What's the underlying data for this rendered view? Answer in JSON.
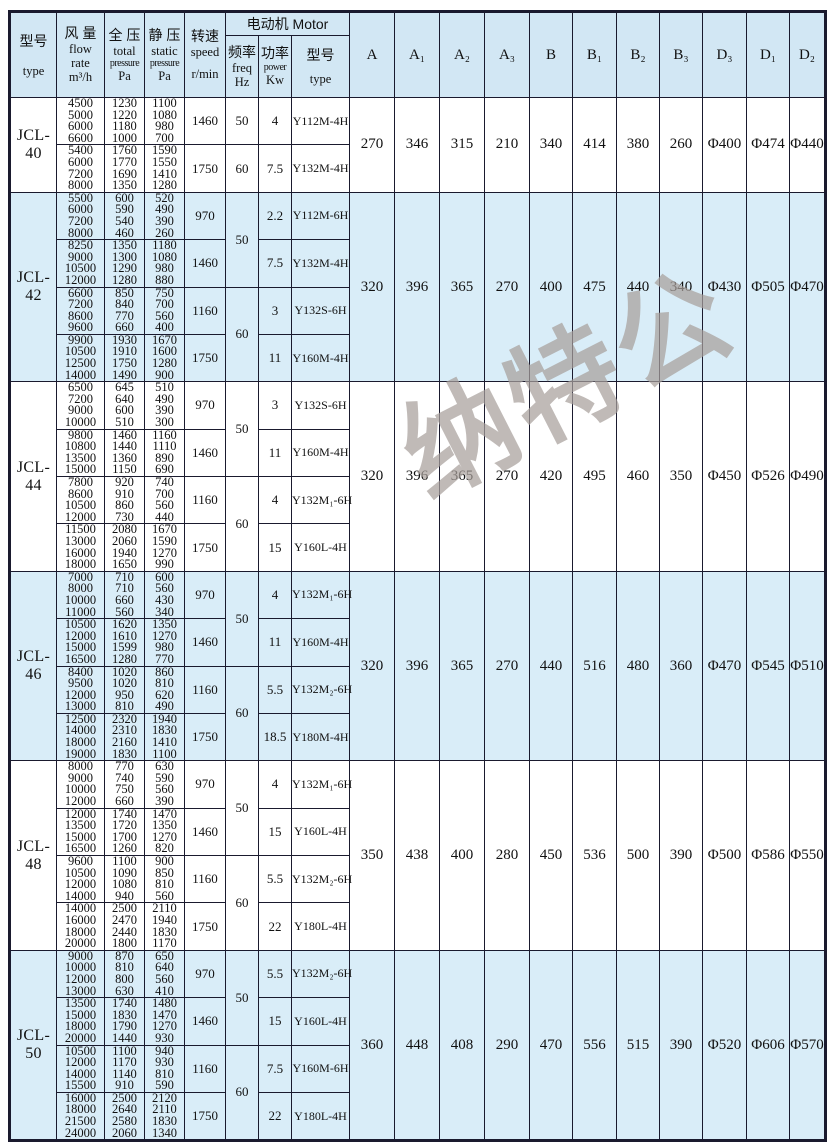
{
  "watermark": "纳特公",
  "header": {
    "type_zh": "型号",
    "type_en": "type",
    "flow_zh": "风 量",
    "flow_en1": "flow",
    "flow_en2": "rate",
    "flow_unit": "m³/h",
    "total_zh": "全 压",
    "total_en1": "total",
    "total_en2": "pressure",
    "total_unit": "Pa",
    "static_zh": "静 压",
    "static_en1": "static",
    "static_en2": "pressure",
    "static_unit": "Pa",
    "speed_zh": "转速",
    "speed_en": "speed",
    "speed_unit": "r/min",
    "motor_group": "电动机 Motor",
    "freq_zh": "频率",
    "freq_en": "freq",
    "freq_unit": "Hz",
    "power_zh": "功率",
    "power_en": "power",
    "power_unit": "Kw",
    "motor_type_zh": "型号",
    "motor_type_en": "type",
    "dims": [
      "A",
      "A₁",
      "A₂",
      "A₃",
      "B",
      "B₁",
      "B₂",
      "B₃",
      "D₃",
      "D₁",
      "D₂"
    ]
  },
  "sections": [
    {
      "model": "JCL-40",
      "shaded": false,
      "freq_groups": [
        {
          "freq": "50",
          "rows": [
            {
              "flow": [
                "4500",
                "5000",
                "6000",
                "6600"
              ],
              "total": [
                "1230",
                "1220",
                "1180",
                "1000"
              ],
              "static": [
                "1100",
                "1080",
                "980",
                "700"
              ],
              "speed": "1460",
              "power": "4",
              "motor": "Y112M-4H"
            }
          ]
        },
        {
          "freq": "60",
          "rows": [
            {
              "flow": [
                "5400",
                "6000",
                "7200",
                "8000"
              ],
              "total": [
                "1760",
                "1770",
                "1690",
                "1350"
              ],
              "static": [
                "1590",
                "1550",
                "1410",
                "1280"
              ],
              "speed": "1750",
              "power": "7.5",
              "motor": "Y132M-4H"
            }
          ]
        }
      ],
      "dims": [
        "270",
        "346",
        "315",
        "210",
        "340",
        "414",
        "380",
        "260",
        "Φ400",
        "Φ474",
        "Φ440"
      ]
    },
    {
      "model": "JCL-42",
      "shaded": true,
      "freq_groups": [
        {
          "freq": "50",
          "rows": [
            {
              "flow": [
                "5500",
                "6000",
                "7200",
                "8000"
              ],
              "total": [
                "600",
                "590",
                "540",
                "460"
              ],
              "static": [
                "520",
                "490",
                "390",
                "260"
              ],
              "speed": "970",
              "power": "2.2",
              "motor": "Y112M-6H"
            },
            {
              "flow": [
                "8250",
                "9000",
                "10500",
                "12000"
              ],
              "total": [
                "1350",
                "1300",
                "1290",
                "1280"
              ],
              "static": [
                "1180",
                "1080",
                "980",
                "880"
              ],
              "speed": "1460",
              "power": "7.5",
              "motor": "Y132M-4H"
            }
          ]
        },
        {
          "freq": "60",
          "rows": [
            {
              "flow": [
                "6600",
                "7200",
                "8600",
                "9600"
              ],
              "total": [
                "850",
                "840",
                "770",
                "660"
              ],
              "static": [
                "750",
                "700",
                "560",
                "400"
              ],
              "speed": "1160",
              "power": "3",
              "motor": "Y132S-6H"
            },
            {
              "flow": [
                "9900",
                "10500",
                "12500",
                "14000"
              ],
              "total": [
                "1930",
                "1910",
                "1750",
                "1490"
              ],
              "static": [
                "1670",
                "1600",
                "1280",
                "900"
              ],
              "speed": "1750",
              "power": "11",
              "motor": "Y160M-4H"
            }
          ]
        }
      ],
      "dims": [
        "320",
        "396",
        "365",
        "270",
        "400",
        "475",
        "440",
        "340",
        "Φ430",
        "Φ505",
        "Φ470"
      ]
    },
    {
      "model": "JCL-44",
      "shaded": false,
      "freq_groups": [
        {
          "freq": "50",
          "rows": [
            {
              "flow": [
                "6500",
                "7200",
                "9000",
                "10000"
              ],
              "total": [
                "645",
                "640",
                "600",
                "510"
              ],
              "static": [
                "510",
                "490",
                "390",
                "300"
              ],
              "speed": "970",
              "power": "3",
              "motor": "Y132S-6H"
            },
            {
              "flow": [
                "9800",
                "10800",
                "13500",
                "15000"
              ],
              "total": [
                "1460",
                "1440",
                "1360",
                "1150"
              ],
              "static": [
                "1160",
                "1110",
                "890",
                "690"
              ],
              "speed": "1460",
              "power": "11",
              "motor": "Y160M-4H"
            }
          ]
        },
        {
          "freq": "60",
          "rows": [
            {
              "flow": [
                "7800",
                "8600",
                "10500",
                "12000"
              ],
              "total": [
                "920",
                "910",
                "860",
                "730"
              ],
              "static": [
                "740",
                "700",
                "560",
                "440"
              ],
              "speed": "1160",
              "power": "4",
              "motor": "Y132M₁-6H"
            },
            {
              "flow": [
                "11500",
                "13000",
                "16000",
                "18000"
              ],
              "total": [
                "2080",
                "2060",
                "1940",
                "1650"
              ],
              "static": [
                "1670",
                "1590",
                "1270",
                "990"
              ],
              "speed": "1750",
              "power": "15",
              "motor": "Y160L-4H"
            }
          ]
        }
      ],
      "dims": [
        "320",
        "396",
        "365",
        "270",
        "420",
        "495",
        "460",
        "350",
        "Φ450",
        "Φ526",
        "Φ490"
      ]
    },
    {
      "model": "JCL-46",
      "shaded": true,
      "freq_groups": [
        {
          "freq": "50",
          "rows": [
            {
              "flow": [
                "7000",
                "8000",
                "10000",
                "11000"
              ],
              "total": [
                "710",
                "710",
                "660",
                "560"
              ],
              "static": [
                "600",
                "560",
                "430",
                "340"
              ],
              "speed": "970",
              "power": "4",
              "motor": "Y132M₁-6H"
            },
            {
              "flow": [
                "10500",
                "12000",
                "15000",
                "16500"
              ],
              "total": [
                "1620",
                "1610",
                "1599",
                "1280"
              ],
              "static": [
                "1350",
                "1270",
                "980",
                "770"
              ],
              "speed": "1460",
              "power": "11",
              "motor": "Y160M-4H"
            }
          ]
        },
        {
          "freq": "60",
          "rows": [
            {
              "flow": [
                "8400",
                "9500",
                "12000",
                "13000"
              ],
              "total": [
                "1020",
                "1020",
                "950",
                "810"
              ],
              "static": [
                "860",
                "810",
                "620",
                "490"
              ],
              "speed": "1160",
              "power": "5.5",
              "motor": "Y132M₂-6H"
            },
            {
              "flow": [
                "12500",
                "14000",
                "18000",
                "19000"
              ],
              "total": [
                "2320",
                "2310",
                "2160",
                "1830"
              ],
              "static": [
                "1940",
                "1830",
                "1410",
                "1100"
              ],
              "speed": "1750",
              "power": "18.5",
              "motor": "Y180M-4H"
            }
          ]
        }
      ],
      "dims": [
        "320",
        "396",
        "365",
        "270",
        "440",
        "516",
        "480",
        "360",
        "Φ470",
        "Φ545",
        "Φ510"
      ]
    },
    {
      "model": "JCL-48",
      "shaded": false,
      "freq_groups": [
        {
          "freq": "50",
          "rows": [
            {
              "flow": [
                "8000",
                "9000",
                "10000",
                "12000"
              ],
              "total": [
                "770",
                "740",
                "750",
                "660"
              ],
              "static": [
                "630",
                "590",
                "560",
                "390"
              ],
              "speed": "970",
              "power": "4",
              "motor": "Y132M₁-6H"
            },
            {
              "flow": [
                "12000",
                "13500",
                "15000",
                "16500"
              ],
              "total": [
                "1740",
                "1720",
                "1700",
                "1260"
              ],
              "static": [
                "1470",
                "1350",
                "1270",
                "820"
              ],
              "speed": "1460",
              "power": "15",
              "motor": "Y160L-4H"
            }
          ]
        },
        {
          "freq": "60",
          "rows": [
            {
              "flow": [
                "9600",
                "10500",
                "12000",
                "14000"
              ],
              "total": [
                "1100",
                "1090",
                "1080",
                "940"
              ],
              "static": [
                "900",
                "850",
                "810",
                "560"
              ],
              "speed": "1160",
              "power": "5.5",
              "motor": "Y132M₂-6H"
            },
            {
              "flow": [
                "14000",
                "16000",
                "18000",
                "20000"
              ],
              "total": [
                "2500",
                "2470",
                "2440",
                "1800"
              ],
              "static": [
                "2110",
                "1940",
                "1830",
                "1170"
              ],
              "speed": "1750",
              "power": "22",
              "motor": "Y180L-4H"
            }
          ]
        }
      ],
      "dims": [
        "350",
        "438",
        "400",
        "280",
        "450",
        "536",
        "500",
        "390",
        "Φ500",
        "Φ586",
        "Φ550"
      ]
    },
    {
      "model": "JCL-50",
      "shaded": true,
      "freq_groups": [
        {
          "freq": "50",
          "rows": [
            {
              "flow": [
                "9000",
                "10000",
                "12000",
                "13000"
              ],
              "total": [
                "870",
                "810",
                "800",
                "630"
              ],
              "static": [
                "650",
                "640",
                "560",
                "410"
              ],
              "speed": "970",
              "power": "5.5",
              "motor": "Y132M₂-6H"
            },
            {
              "flow": [
                "13500",
                "15000",
                "18000",
                "20000"
              ],
              "total": [
                "1740",
                "1830",
                "1790",
                "1440"
              ],
              "static": [
                "1480",
                "1470",
                "1270",
                "930"
              ],
              "speed": "1460",
              "power": "15",
              "motor": "Y160L-4H"
            }
          ]
        },
        {
          "freq": "60",
          "rows": [
            {
              "flow": [
                "10500",
                "12000",
                "14000",
                "15500"
              ],
              "total": [
                "1100",
                "1170",
                "1140",
                "910"
              ],
              "static": [
                "940",
                "930",
                "810",
                "590"
              ],
              "speed": "1160",
              "power": "7.5",
              "motor": "Y160M-6H"
            },
            {
              "flow": [
                "16000",
                "18000",
                "21500",
                "24000"
              ],
              "total": [
                "2500",
                "2640",
                "2580",
                "2060"
              ],
              "static": [
                "2120",
                "2110",
                "1830",
                "1340"
              ],
              "speed": "1750",
              "power": "22",
              "motor": "Y180L-4H"
            }
          ]
        }
      ],
      "dims": [
        "360",
        "448",
        "408",
        "290",
        "470",
        "556",
        "515",
        "390",
        "Φ520",
        "Φ606",
        "Φ570"
      ]
    }
  ]
}
